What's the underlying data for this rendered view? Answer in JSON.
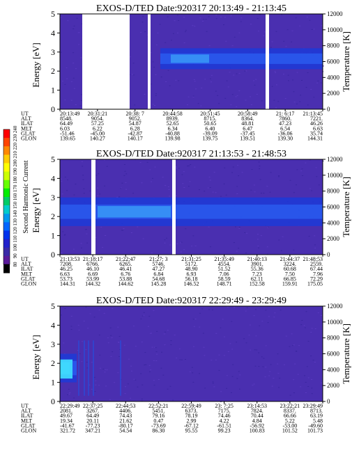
{
  "chart_data": [
    {
      "type": "heatmap",
      "title": "EXOS-D/TED   Date:920317   20:13:49 - 21:13:45",
      "ylabel": "Energy [eV]",
      "y2label": "Temperature [K]",
      "ylim": [
        0,
        5
      ],
      "y2lim": [
        0,
        12000
      ],
      "yticks": [
        "0",
        "1",
        "2",
        "3",
        "4",
        "5"
      ],
      "y2ticks": [
        "0",
        "2000",
        "4000",
        "6000",
        "8000",
        "10000",
        "12000"
      ],
      "row_labels": [
        "UT",
        "ALT",
        "ILAT",
        "MLT",
        "GLAT",
        "GLON"
      ],
      "columns": [
        {
          "UT": "20:13:49",
          "ALT": "8548.",
          "ILAT": "64.49",
          "MLT": "6.03",
          "GLAT": "-51.46",
          "GLON": "139.65"
        },
        {
          "UT": "20:31:21",
          "ALT": "9054.",
          "ILAT": "57.25",
          "MLT": "6.22",
          "GLAT": "-45.00",
          "GLON": "140.27"
        },
        {
          "UT": "20:38: 7",
          "ALT": "9052.",
          "ILAT": "54.87",
          "MLT": "6.28",
          "GLAT": "-42.87",
          "GLON": "140.17"
        },
        {
          "UT": "20:44:58",
          "ALT": "8939.",
          "ILAT": "52.65",
          "MLT": "6.34",
          "GLAT": "-40.88",
          "GLON": "139.98"
        },
        {
          "UT": "20:51:45",
          "ALT": "8715.",
          "ILAT": "50.65",
          "MLT": "6.40",
          "GLAT": "-39.09",
          "GLON": "139.75"
        },
        {
          "UT": "20:58:49",
          "ALT": "8364.",
          "ILAT": "48.81",
          "MLT": "6.47",
          "GLAT": "-37.45",
          "GLON": "139.51"
        },
        {
          "UT": "21: 6:17",
          "ALT": "7860.",
          "ILAT": "47.23",
          "MLT": "6.54",
          "GLAT": "-36.06",
          "GLON": "139.30"
        },
        {
          "UT": "21:13:45",
          "ALT": "7221.",
          "ILAT": "46.26",
          "MLT": "6.63",
          "GLAT": "35.74",
          "GLON": "144.31"
        }
      ]
    },
    {
      "type": "heatmap",
      "title": "EXOS-D/TED   Date:920317   21:13:53 - 21:48:53",
      "ylabel": "Energy [eV]",
      "y2label": "Temperature [K]",
      "ylim": [
        0,
        5
      ],
      "y2lim": [
        0,
        12000
      ],
      "yticks": [
        "0",
        "1",
        "2",
        "3",
        "4",
        "5"
      ],
      "y2ticks": [
        "0",
        "2000",
        "4000",
        "6000",
        "8000",
        "10000",
        "12000"
      ],
      "row_labels": [
        "UT",
        "ALT",
        "ILAT",
        "MLT",
        "GLAT",
        "GLON"
      ],
      "columns": [
        {
          "UT": "21:13:53",
          "ALT": "7208.",
          "ILAT": "46.25",
          "MLT": "6.63",
          "GLAT": "53.73",
          "GLON": "144.31"
        },
        {
          "UT": "21:18:17",
          "ALT": "6766.",
          "ILAT": "46.10",
          "MLT": "6.69",
          "GLAT": "53.99",
          "GLON": "144.32"
        },
        {
          "UT": "21:22:47",
          "ALT": "6265.",
          "ILAT": "46.41",
          "MLT": "6.76",
          "GLAT": "53.88",
          "GLON": "144.62"
        },
        {
          "UT": "21:27: 3",
          "ALT": "5746.",
          "ILAT": "47.27",
          "MLT": "6.84",
          "GLAT": "54.68",
          "GLON": "145.28"
        },
        {
          "UT": "21:31:25",
          "ALT": "5172.",
          "ILAT": "48.90",
          "MLT": "6.93",
          "GLAT": "56.18",
          "GLON": "146.52"
        },
        {
          "UT": "21:35:49",
          "ALT": "4554.",
          "ILAT": "51.52",
          "MLT": "7.06",
          "GLAT": "58.59",
          "GLON": "148.71"
        },
        {
          "UT": "21:40:13",
          "ALT": "3901.",
          "ILAT": "55.36",
          "MLT": "7.23",
          "GLAT": "62.11",
          "GLON": "152.58"
        },
        {
          "UT": "21:44:37",
          "ALT": "3224.",
          "ILAT": "60.68",
          "MLT": "7.50",
          "GLAT": "66.85",
          "GLON": "159.91"
        },
        {
          "UT": "21:48:53",
          "ALT": "2559.",
          "ILAT": "67.44",
          "MLT": "7.96",
          "GLAT": "72.29",
          "GLON": "175.05"
        }
      ]
    },
    {
      "type": "heatmap",
      "title": "EXOS-D/TED   Date:920317   22:29:49 - 23:29:49",
      "ylabel": "Energy [eV]",
      "y2label": "Temperature [K]",
      "ylim": [
        0,
        5
      ],
      "y2lim": [
        0,
        12000
      ],
      "yticks": [
        "0",
        "1",
        "2",
        "3",
        "4",
        "5"
      ],
      "y2ticks": [
        "0",
        "2000",
        "4000",
        "6000",
        "8000",
        "10000",
        "12000"
      ],
      "row_labels": [
        "UT",
        "ALT",
        "ILAT",
        "MLT",
        "GLAT",
        "GLON"
      ],
      "columns": [
        {
          "UT": "22:29:49",
          "ALT": "2081.",
          "ILAT": "49.67",
          "MLT": "19.34",
          "GLAT": "-41.67",
          "GLON": "321.72"
        },
        {
          "UT": "22:37:25",
          "ALT": "3267.",
          "ILAT": "64.49",
          "MLT": "20.11",
          "GLAT": "-77.23",
          "GLON": "347.21"
        },
        {
          "UT": "22:44:53",
          "ALT": "4406.",
          "ILAT": "74.43",
          "MLT": "21.62",
          "GLAT": "-80.17",
          "GLON": "54.54"
        },
        {
          "UT": "22:52:21",
          "ALT": "5451.",
          "ILAT": "79.16",
          "MLT": "0.47",
          "GLAT": "-73.69",
          "GLON": "86.30"
        },
        {
          "UT": "22:59:49",
          "ALT": "6373.",
          "ILAT": "78.19",
          "MLT": "2.99",
          "GLAT": "-67.12",
          "GLON": "95.55"
        },
        {
          "UT": "23: 7:25",
          "ALT": "7175.",
          "ILAT": "74.46",
          "MLT": "4.22",
          "GLAT": "-61.51",
          "GLON": "99.23"
        },
        {
          "UT": "23:14:53",
          "ALT": "7824.",
          "ILAT": "70.44",
          "MLT": "4.84",
          "GLAT": "-56.92",
          "GLON": "100.83"
        },
        {
          "UT": "23:22:21",
          "ALT": "8337.",
          "ILAT": "66.66",
          "MLT": "5.22",
          "GLAT": "-53.00",
          "GLON": "101.52"
        },
        {
          "UT": "23:29:49",
          "ALT": "8713.",
          "ILAT": "63.19",
          "MLT": "5.48",
          "GLAT": "-49.60",
          "GLON": "101.73"
        }
      ]
    }
  ],
  "colorbar": {
    "label": "Second Harmonic Current",
    "ticks": [
      "240",
      "230",
      "220",
      "210",
      "200",
      "190",
      "180",
      "170",
      "160",
      "150",
      "140",
      "130",
      "120",
      "110",
      "100",
      "90",
      "80"
    ],
    "colors": [
      "#ff0000",
      "#ff4400",
      "#ff8800",
      "#ffcc00",
      "#ffff00",
      "#ccff00",
      "#66ff00",
      "#00ee00",
      "#00cc66",
      "#00cccc",
      "#0099ee",
      "#0066ff",
      "#0033ee",
      "#2222cc",
      "#3a2aa8",
      "#5a1a9a",
      "#000000"
    ]
  }
}
